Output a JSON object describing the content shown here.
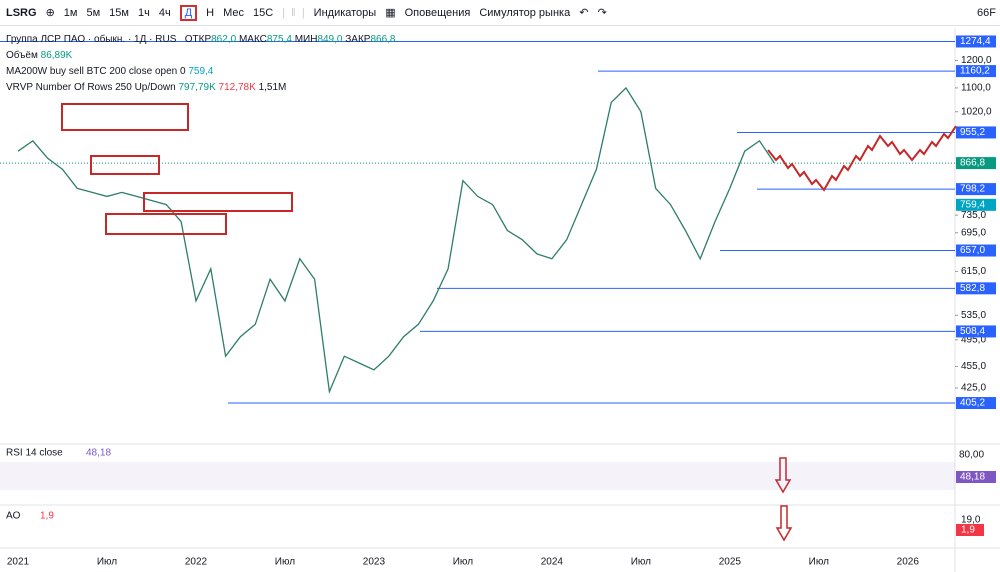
{
  "toolbar": {
    "symbol": "LSRG",
    "intervals": [
      "1м",
      "5м",
      "15м",
      "1ч",
      "4ч",
      "Д",
      "Н",
      "Мес"
    ],
    "range": "15С",
    "indicators": "Индикаторы",
    "alerts": "Оповещения",
    "replay": "Симулятор рынка",
    "right": "66F"
  },
  "legend": {
    "name": "Группа ЛСР ПАО · обыкн. · 1Д · RUS",
    "ohlc": [
      {
        "label": "ОТКР",
        "value": "862,0"
      },
      {
        "label": "МАКС",
        "value": "875,4"
      },
      {
        "label": "МИН",
        "value": "849,0"
      },
      {
        "label": "ЗАКР",
        "value": "866,8"
      }
    ],
    "volume": {
      "label": "Объём",
      "value": "86,89K"
    },
    "ma": {
      "label": "MA200W buy sell BTC 200 close open 0",
      "value": "759,4"
    },
    "vrvp": {
      "label": "VRVP Number Of Rows 250 Up/Down",
      "values": [
        "797,79K",
        "712,78K",
        "1,51M"
      ]
    }
  },
  "chart_data": {
    "type": "line",
    "log_scale": true,
    "color": "#2e7d6b",
    "values": [
      900,
      930,
      880,
      850,
      800,
      790,
      780,
      790,
      780,
      770,
      760,
      720,
      560,
      620,
      470,
      500,
      520,
      600,
      560,
      640,
      600,
      420,
      470,
      460,
      450,
      470,
      500,
      520,
      560,
      620,
      820,
      780,
      760,
      700,
      680,
      650,
      640,
      680,
      760,
      850,
      1050,
      1100,
      1020,
      800,
      760,
      700,
      640,
      720,
      800,
      900,
      930,
      867
    ],
    "ylim": [
      372,
      1330
    ],
    "yticks": [
      {
        "value": 1200,
        "label": "1200,0"
      },
      {
        "value": 1100,
        "label": "1100,0"
      },
      {
        "value": 1020,
        "label": "1020,0"
      },
      {
        "value": 735,
        "label": "735,0"
      },
      {
        "value": 695,
        "label": "695,0"
      },
      {
        "value": 615,
        "label": "615,0"
      },
      {
        "value": 535,
        "label": "535,0"
      },
      {
        "value": 495,
        "label": "495,0"
      },
      {
        "value": 455,
        "label": "455,0"
      },
      {
        "value": 425,
        "label": "425,0"
      }
    ],
    "levels": [
      {
        "value": 1274.4,
        "label": "1274,4"
      },
      {
        "value": 1160.2,
        "label": "1160,2"
      },
      {
        "value": 955.2,
        "label": "955,2"
      },
      {
        "value": 866.8,
        "label": "866,8"
      },
      {
        "value": 798.2,
        "label": "798,2"
      },
      {
        "value": 759.4,
        "label": "759,4"
      },
      {
        "value": 657,
        "label": "657,0"
      },
      {
        "value": 582.8,
        "label": "582,8"
      },
      {
        "value": 508.4,
        "label": "508,4"
      },
      {
        "value": 405.2,
        "label": "405,2"
      }
    ],
    "x_labels": [
      "2021",
      "Июл",
      "2022",
      "Июл",
      "2023",
      "Июл",
      "2024",
      "Июл",
      "2025",
      "Июл",
      "2026"
    ]
  },
  "rsi": {
    "label": "RSI 14 close",
    "value": "48,18",
    "axis": "80,00"
  },
  "ao": {
    "label": "AO",
    "value": "1,9",
    "axis": "19,0"
  }
}
